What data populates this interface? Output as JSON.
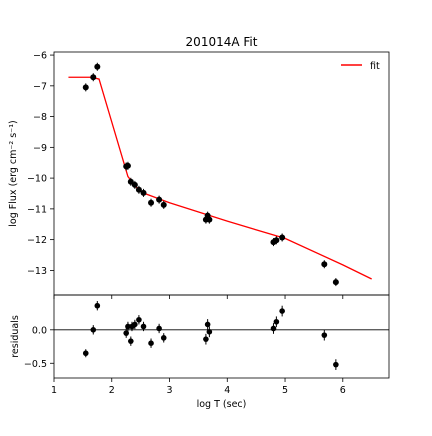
{
  "chart_data": [
    {
      "type": "scatter",
      "title": "201014A Fit",
      "xlabel": "",
      "ylabel": "log Flux (erg cm⁻² s⁻¹)",
      "xlim": [
        1.0,
        6.8
      ],
      "ylim": [
        -13.8,
        -5.9
      ],
      "yticks": [
        -6,
        -7,
        -8,
        -9,
        -10,
        -11,
        -12,
        -13
      ],
      "grid": false,
      "legend": {
        "placement": "top-right",
        "entries": [
          "fit"
        ]
      },
      "series": [
        {
          "name": "",
          "kind": "data-points",
          "color": "#000000",
          "x": [
            1.55,
            1.68,
            1.75,
            2.25,
            2.28,
            2.33,
            2.4,
            2.47,
            2.55,
            2.68,
            2.82,
            2.9,
            3.63,
            3.66,
            3.69,
            4.8,
            4.85,
            4.95,
            5.68,
            5.88
          ],
          "y": [
            -7.05,
            -6.72,
            -6.38,
            -9.62,
            -9.6,
            -10.12,
            -10.22,
            -10.38,
            -10.48,
            -10.8,
            -10.7,
            -10.87,
            -11.35,
            -11.22,
            -11.35,
            -12.08,
            -12.02,
            -11.93,
            -12.8,
            -13.38
          ]
        },
        {
          "name": "fit",
          "kind": "line",
          "color": "#ff0000",
          "x": [
            1.25,
            1.65,
            1.78,
            2.28,
            2.45,
            2.6,
            3.0,
            4.0,
            5.0,
            6.0,
            6.5
          ],
          "y": [
            -6.72,
            -6.72,
            -6.78,
            -9.95,
            -10.35,
            -10.52,
            -10.8,
            -11.4,
            -11.96,
            -12.82,
            -13.28
          ]
        }
      ]
    },
    {
      "type": "scatter",
      "title": "",
      "xlabel": "log T (sec)",
      "ylabel": "residuals",
      "xlim": [
        1.0,
        6.8
      ],
      "ylim": [
        -0.72,
        0.52
      ],
      "xticks": [
        1,
        2,
        3,
        4,
        5,
        6
      ],
      "yticks": [
        0.0,
        -0.5
      ],
      "ytick_labels": [
        "0.0",
        "−0.5"
      ],
      "reference_line": 0,
      "grid": false,
      "series": [
        {
          "name": "",
          "kind": "residual-points",
          "color": "#000000",
          "x": [
            1.55,
            1.68,
            1.75,
            2.25,
            2.28,
            2.33,
            2.35,
            2.4,
            2.47,
            2.55,
            2.68,
            2.82,
            2.9,
            3.63,
            3.66,
            3.69,
            4.8,
            4.85,
            4.95,
            5.68,
            5.88
          ],
          "y": [
            -0.35,
            0.0,
            0.36,
            -0.05,
            0.05,
            -0.17,
            0.05,
            0.08,
            0.15,
            0.05,
            -0.2,
            0.02,
            -0.12,
            -0.14,
            0.08,
            -0.03,
            0.02,
            0.12,
            0.28,
            -0.08,
            -0.52
          ],
          "err": [
            0.06,
            0.07,
            0.07,
            0.07,
            0.07,
            0.07,
            0.07,
            0.07,
            0.07,
            0.07,
            0.07,
            0.07,
            0.07,
            0.08,
            0.08,
            0.08,
            0.08,
            0.08,
            0.08,
            0.08,
            0.08
          ]
        }
      ]
    }
  ]
}
